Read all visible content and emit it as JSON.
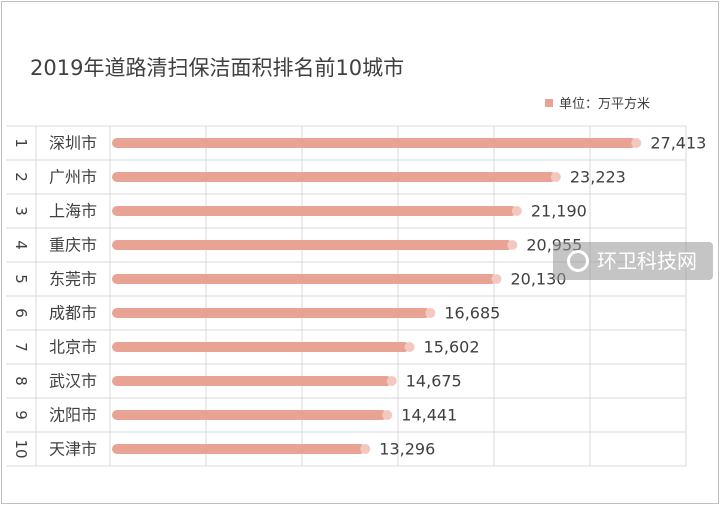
{
  "chart_data": {
    "type": "bar",
    "orientation": "horizontal",
    "title": "2019年道路清扫保洁面积排名前10城市",
    "legend": {
      "label": "单位：万平方米",
      "placement": "top-right"
    },
    "ranks": [
      "1",
      "2",
      "3",
      "4",
      "5",
      "6",
      "7",
      "8",
      "9",
      "10"
    ],
    "categories": [
      "深圳市",
      "广州市",
      "上海市",
      "重庆市",
      "东莞市",
      "成都市",
      "北京市",
      "武汉市",
      "沈阳市",
      "天津市"
    ],
    "values": [
      27413,
      23223,
      21190,
      20955,
      20130,
      16685,
      15602,
      14675,
      14441,
      13296
    ],
    "value_labels": [
      "27,413",
      "23,223",
      "21,190",
      "20,955",
      "20,130",
      "16,685",
      "15,602",
      "14,675",
      "14,441",
      "13,296"
    ],
    "xlim": [
      0,
      30000
    ],
    "grid": true,
    "colors": {
      "bar": "#e8a394",
      "bar_end": "#f3c9bf",
      "grid": "#d9d9d9",
      "text": "#404040"
    }
  },
  "watermark": {
    "text": "环卫科技网",
    "icon": "logo-icon"
  }
}
